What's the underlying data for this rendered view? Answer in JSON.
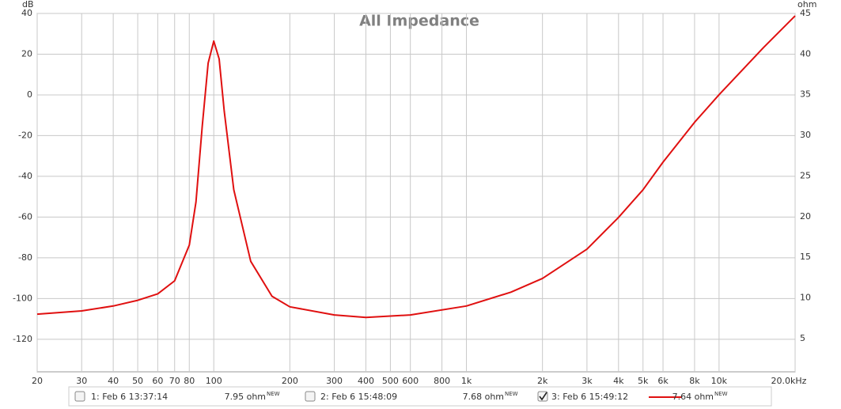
{
  "chart_data": {
    "type": "line",
    "title": "All Impedance",
    "y_unit": "dB",
    "y2_unit": "ohm",
    "log_x": true,
    "grid": true,
    "xlim": [
      20,
      20000
    ],
    "xticks": [
      20,
      30,
      40,
      50,
      60,
      70,
      80,
      100,
      200,
      300,
      400,
      500,
      600,
      800,
      {
        "value": 1000,
        "label": "1k"
      },
      {
        "value": 2000,
        "label": "2k"
      },
      {
        "value": 3000,
        "label": "3k"
      },
      {
        "value": 4000,
        "label": "4k"
      },
      {
        "value": 5000,
        "label": "5k"
      },
      {
        "value": 6000,
        "label": "6k"
      },
      {
        "value": 8000,
        "label": "8k"
      },
      {
        "value": 10000,
        "label": "10k"
      },
      {
        "value": 20000,
        "label": "20.0kHz"
      }
    ],
    "ylim": [
      -136,
      40
    ],
    "yticks": [
      40,
      20,
      0,
      -20,
      -40,
      -60,
      -80,
      -100,
      -120
    ],
    "y2lim": [
      0.9,
      45
    ],
    "y2ticks": [
      45,
      40,
      35,
      30,
      25,
      20,
      15,
      10,
      5
    ],
    "x": [
      20,
      30,
      40,
      50,
      60,
      70,
      80,
      85,
      90,
      95,
      100,
      105,
      110,
      120,
      140,
      170,
      200,
      300,
      400,
      600,
      1000,
      1500,
      2000,
      3000,
      4000,
      5000,
      6000,
      8000,
      10000,
      15000,
      20000
    ],
    "series": [
      {
        "name": "3: Feb 6 15:49:12",
        "color": "#e01010",
        "axis": "y2",
        "values": [
          8.0,
          8.4,
          9.0,
          9.7,
          10.5,
          12.1,
          16.5,
          21.8,
          31.1,
          38.9,
          41.6,
          39.4,
          33.0,
          23.3,
          14.5,
          10.2,
          8.9,
          7.9,
          7.6,
          7.9,
          9.0,
          10.7,
          12.4,
          16.0,
          19.9,
          23.3,
          26.7,
          31.6,
          35.0,
          40.8,
          44.7
        ]
      }
    ],
    "legend": [
      {
        "label": "1: Feb 6 13:37:14",
        "reading": "7.95 ohm",
        "badge": "NEW",
        "color": "#1f8a1f",
        "checked": false
      },
      {
        "label": "2: Feb 6 15:48:09",
        "reading": "7.68 ohm",
        "badge": "NEW",
        "color": "#3a3aaa",
        "checked": false
      },
      {
        "reading": "7.64 ohm",
        "badge": "NEW",
        "color": "#e01010",
        "checked": true
      }
    ]
  }
}
